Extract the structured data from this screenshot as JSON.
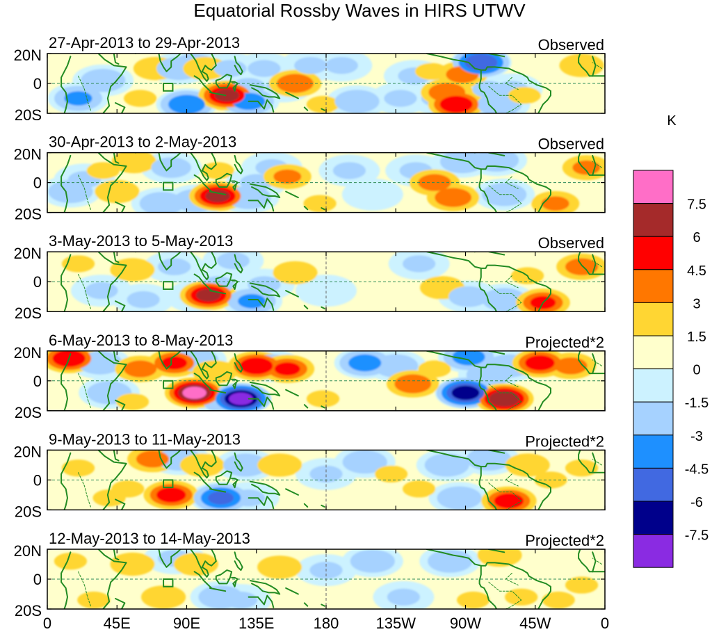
{
  "chart_data": {
    "type": "heatmap",
    "title": "Equatorial Rossby Waves in HIRS UTWV",
    "colorbar": {
      "unit": "K",
      "colors": [
        "#ff6ec7",
        "#a52a2a",
        "#ff0000",
        "#ff7700",
        "#ffd633",
        "#ffffcc",
        "#ccf2ff",
        "#a6d2ff",
        "#1e90ff",
        "#4169e1",
        "#00008b",
        "#8a2be2"
      ],
      "labels": [
        "7.5",
        "6",
        "4.5",
        "3",
        "1.5",
        "0",
        "-1.5",
        "-3",
        "-4.5",
        "-6",
        "-7.5"
      ]
    },
    "palette": {
      "pos": [
        "#ffffcc",
        "#ffd633",
        "#ff7700",
        "#ff0000",
        "#a52a2a",
        "#ff6ec7"
      ],
      "neg": [
        "#ccf2ff",
        "#a6d2ff",
        "#1e90ff",
        "#4169e1",
        "#00008b",
        "#8a2be2"
      ],
      "coast": "#228b22",
      "equator": "#2e8b57",
      "dateline": "#666666"
    },
    "xticks": {
      "values": [
        0,
        45,
        90,
        135,
        180,
        225,
        270,
        315,
        360
      ],
      "labels": [
        "0",
        "45E",
        "90E",
        "135E",
        "180",
        "135W",
        "90W",
        "45W",
        "0"
      ]
    },
    "yticks": {
      "values": [
        20,
        0,
        -20
      ],
      "labels": [
        "20N",
        "0",
        "20S"
      ]
    },
    "xlim": [
      0,
      360
    ],
    "ylim": [
      -20,
      20
    ],
    "box": {
      "lon": [
        75,
        81
      ],
      "lat": [
        -5,
        0
      ]
    },
    "panels": [
      {
        "title": "27-Apr-2013 to 29-Apr-2013",
        "label": "Observed",
        "blobs": [
          [
            20,
            -10,
            -3.5
          ],
          [
            36,
            2,
            -3
          ],
          [
            60,
            -10,
            2
          ],
          [
            70,
            10,
            3
          ],
          [
            85,
            10,
            -3
          ],
          [
            90,
            -14,
            -4.5
          ],
          [
            95,
            12,
            -3
          ],
          [
            102,
            10,
            3
          ],
          [
            116,
            -8,
            6.5
          ],
          [
            118,
            10,
            -2
          ],
          [
            130,
            -12,
            -4
          ],
          [
            130,
            -2,
            -2
          ],
          [
            140,
            10,
            -2
          ],
          [
            152,
            -2,
            -2
          ],
          [
            160,
            0,
            4.5
          ],
          [
            170,
            12,
            -2
          ],
          [
            178,
            -14,
            2
          ],
          [
            190,
            12,
            -2
          ],
          [
            200,
            -12,
            -3
          ],
          [
            228,
            -10,
            -2
          ],
          [
            237,
            5,
            -2
          ],
          [
            248,
            8,
            2
          ],
          [
            252,
            -10,
            -2
          ],
          [
            258,
            -6,
            4.5
          ],
          [
            264,
            -14,
            6
          ],
          [
            268,
            6,
            4
          ],
          [
            280,
            14,
            -6
          ],
          [
            285,
            -4,
            -2
          ],
          [
            292,
            -14,
            -3
          ],
          [
            300,
            -4,
            -2
          ],
          [
            308,
            -8,
            2
          ],
          [
            328,
            -14,
            1.5
          ],
          [
            345,
            12,
            3
          ]
        ]
      },
      {
        "title": "30-Apr-2013 to 2-May-2013",
        "label": "Observed",
        "blobs": [
          [
            15,
            -6,
            -3
          ],
          [
            24,
            2,
            -2
          ],
          [
            36,
            8,
            2
          ],
          [
            45,
            -6,
            3
          ],
          [
            56,
            14,
            3
          ],
          [
            74,
            -14,
            -3
          ],
          [
            80,
            10,
            -2.5
          ],
          [
            96,
            -12,
            -3
          ],
          [
            110,
            -9,
            6.5
          ],
          [
            110,
            8,
            2
          ],
          [
            130,
            -10,
            -3
          ],
          [
            135,
            0,
            -2
          ],
          [
            145,
            10,
            -2
          ],
          [
            155,
            4,
            3.5
          ],
          [
            176,
            -14,
            2
          ],
          [
            195,
            8,
            -2
          ],
          [
            210,
            -8,
            -1.5
          ],
          [
            238,
            8,
            -2
          ],
          [
            250,
            0,
            4
          ],
          [
            262,
            -10,
            4.5
          ],
          [
            268,
            14,
            -3
          ],
          [
            290,
            15,
            -3
          ],
          [
            295,
            -8,
            -3
          ],
          [
            308,
            6,
            1.5
          ],
          [
            328,
            -14,
            3.5
          ],
          [
            348,
            10,
            3.5
          ]
        ]
      },
      {
        "title": "3-May-2013 to 5-May-2013",
        "label": "Observed",
        "blobs": [
          [
            20,
            12,
            2
          ],
          [
            35,
            -6,
            -2
          ],
          [
            55,
            8,
            3
          ],
          [
            62,
            -12,
            -2
          ],
          [
            82,
            10,
            -2
          ],
          [
            96,
            -10,
            -2
          ],
          [
            104,
            -9,
            6.5
          ],
          [
            110,
            -2,
            -2
          ],
          [
            120,
            14,
            -2
          ],
          [
            132,
            -13,
            -3.5
          ],
          [
            140,
            -2,
            -2
          ],
          [
            160,
            6,
            3
          ],
          [
            180,
            -6,
            -1.5
          ],
          [
            240,
            12,
            -2
          ],
          [
            255,
            -4,
            3
          ],
          [
            272,
            -10,
            -2.5
          ],
          [
            295,
            -12,
            -3
          ],
          [
            310,
            4,
            2
          ],
          [
            320,
            -14,
            5
          ],
          [
            345,
            10,
            4
          ]
        ]
      },
      {
        "title": "6-May-2013 to 8-May-2013",
        "label": "Projected*2",
        "blobs": [
          [
            14,
            15,
            6
          ],
          [
            34,
            12,
            -3
          ],
          [
            40,
            -8,
            -3
          ],
          [
            55,
            -14,
            2
          ],
          [
            60,
            8,
            4
          ],
          [
            82,
            12,
            5
          ],
          [
            95,
            -8,
            8
          ],
          [
            96,
            14,
            -3
          ],
          [
            108,
            6,
            3
          ],
          [
            115,
            -14,
            -3
          ],
          [
            125,
            -12,
            -8
          ],
          [
            135,
            10,
            6
          ],
          [
            145,
            10,
            -3
          ],
          [
            155,
            8,
            5
          ],
          [
            178,
            -12,
            2
          ],
          [
            205,
            12,
            -4
          ],
          [
            225,
            10,
            -3
          ],
          [
            236,
            -2,
            4.5
          ],
          [
            250,
            8,
            2
          ],
          [
            270,
            -8,
            -7
          ],
          [
            272,
            16,
            -4
          ],
          [
            285,
            4,
            -3
          ],
          [
            295,
            -12,
            7.5
          ],
          [
            298,
            10,
            -3
          ],
          [
            318,
            12,
            5.5
          ],
          [
            338,
            10,
            4
          ]
        ]
      },
      {
        "title": "9-May-2013 to 11-May-2013",
        "label": "Projected*2",
        "blobs": [
          [
            20,
            8,
            2
          ],
          [
            40,
            -12,
            2
          ],
          [
            52,
            -6,
            2
          ],
          [
            68,
            14,
            4
          ],
          [
            80,
            -10,
            5.5
          ],
          [
            85,
            14,
            -3
          ],
          [
            100,
            10,
            3
          ],
          [
            112,
            -12,
            -5
          ],
          [
            128,
            10,
            -3
          ],
          [
            130,
            -12,
            -2
          ],
          [
            150,
            10,
            3
          ],
          [
            180,
            4,
            -2
          ],
          [
            205,
            12,
            -3
          ],
          [
            222,
            4,
            2
          ],
          [
            240,
            -6,
            2
          ],
          [
            258,
            10,
            -3
          ],
          [
            266,
            -12,
            -3
          ],
          [
            285,
            14,
            -3
          ],
          [
            298,
            -14,
            5.5
          ],
          [
            310,
            10,
            3
          ],
          [
            325,
            0,
            2
          ],
          [
            345,
            8,
            2
          ]
        ]
      },
      {
        "title": "12-May-2013 to 14-May-2013",
        "label": "Projected*2",
        "blobs": [
          [
            15,
            12,
            2
          ],
          [
            30,
            -14,
            2
          ],
          [
            55,
            10,
            3
          ],
          [
            75,
            -12,
            3
          ],
          [
            82,
            14,
            -2
          ],
          [
            96,
            10,
            3
          ],
          [
            112,
            -12,
            -3
          ],
          [
            125,
            -14,
            -2
          ],
          [
            150,
            8,
            3
          ],
          [
            180,
            6,
            -2
          ],
          [
            210,
            12,
            -3
          ],
          [
            230,
            -12,
            -2
          ],
          [
            260,
            12,
            -3
          ],
          [
            275,
            -14,
            2
          ],
          [
            292,
            16,
            3
          ],
          [
            306,
            -12,
            2
          ],
          [
            330,
            -14,
            2
          ],
          [
            345,
            -4,
            2
          ]
        ]
      }
    ]
  }
}
